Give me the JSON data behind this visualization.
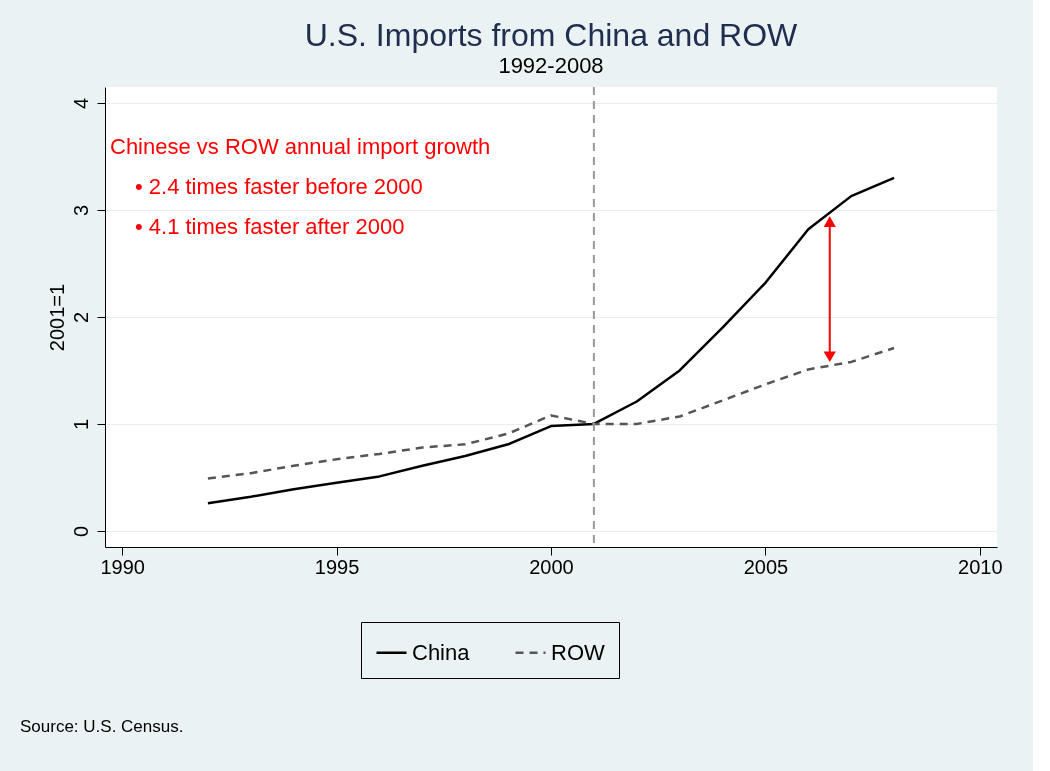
{
  "chart_data": {
    "type": "line",
    "title": "U.S. Imports from China and ROW",
    "subtitle": "1992-2008",
    "ylabel": "2001=1",
    "x": [
      1992,
      1993,
      1994,
      1995,
      1996,
      1997,
      1998,
      1999,
      2000,
      2001,
      2002,
      2003,
      2004,
      2005,
      2006,
      2007,
      2008
    ],
    "series": [
      {
        "name": "China",
        "color": "#000000",
        "line_style": "solid",
        "values": [
          0.26,
          0.32,
          0.39,
          0.45,
          0.51,
          0.61,
          0.7,
          0.81,
          0.98,
          1.0,
          1.21,
          1.5,
          1.9,
          2.32,
          2.82,
          3.13,
          3.3
        ]
      },
      {
        "name": "ROW",
        "color": "#555555",
        "line_style": "dashed",
        "values": [
          0.49,
          0.54,
          0.61,
          0.67,
          0.72,
          0.78,
          0.81,
          0.91,
          1.08,
          1.0,
          1.0,
          1.07,
          1.22,
          1.37,
          1.51,
          1.58,
          1.71
        ]
      }
    ],
    "xlim": [
      1989.6,
      2010.4
    ],
    "xticks": [
      1990,
      1995,
      2000,
      2005,
      2010
    ],
    "ylim": [
      -0.15,
      4.15
    ],
    "yticks": [
      0,
      1,
      2,
      3,
      4
    ],
    "grid": "y",
    "legend": "bottom",
    "marker": "none",
    "ref_lines": [
      {
        "axis": "x",
        "value": 2001,
        "color": "#999999",
        "line_style": "dashed"
      }
    ],
    "annotations": [
      "Chinese vs ROW annual import growth",
      "•    2.4 times faster before 2000",
      "•    4.1 times faster after 2000",
      "Source: U.S. Census."
    ]
  }
}
